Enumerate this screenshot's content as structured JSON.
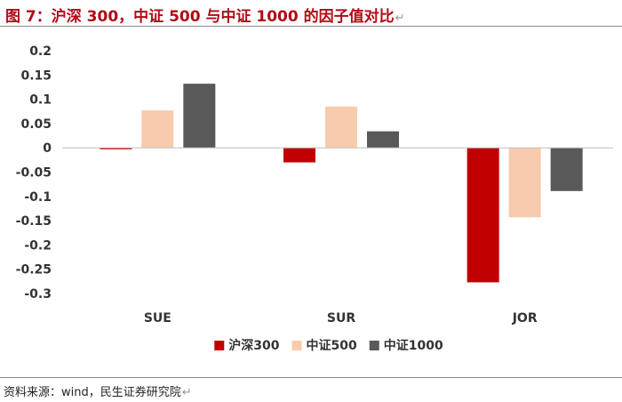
{
  "title": "图 7：沪深 300，中证 500 与中证 1000 的因子值对比",
  "title_return_mark": "↵",
  "source": "资料来源：wind，民生证券研究院",
  "source_return_mark": "↵",
  "colors": {
    "title": "#b20a16",
    "rules": "#8a8a8a",
    "series": [
      "#c00000",
      "#f8cbad",
      "#595959"
    ]
  },
  "chart_data": {
    "type": "bar",
    "title": "",
    "xlabel": "",
    "ylabel": "",
    "categories": [
      "SUE",
      "SUR",
      "JOR"
    ],
    "series": [
      {
        "name": "沪深300",
        "values": [
          -0.003,
          -0.03,
          -0.277
        ]
      },
      {
        "name": "中证500",
        "values": [
          0.077,
          0.085,
          -0.143
        ]
      },
      {
        "name": "中证1000",
        "values": [
          0.132,
          0.034,
          -0.089
        ]
      }
    ],
    "ylim": [
      -0.3,
      0.2
    ],
    "yticks": [
      0.2,
      0.15,
      0.1,
      0.05,
      0,
      -0.05,
      -0.1,
      -0.15,
      -0.2,
      -0.25,
      -0.3
    ],
    "ytick_labels": [
      "0.2",
      "0.15",
      "0.1",
      "0.05",
      "0",
      "-0.05",
      "-0.1",
      "-0.15",
      "-0.2",
      "-0.25",
      "-0.3"
    ],
    "grid": false,
    "legend_position": "bottom-center"
  }
}
